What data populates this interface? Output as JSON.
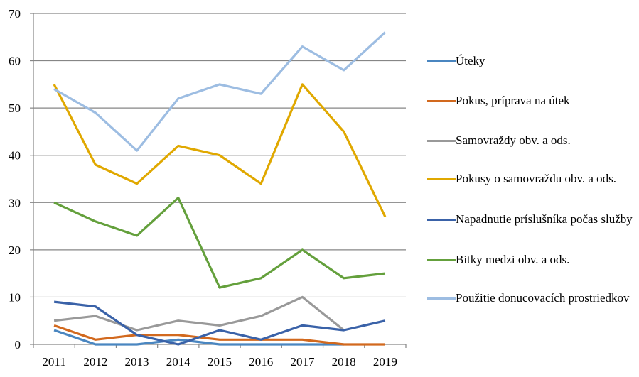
{
  "chart_data": {
    "type": "line",
    "title": "",
    "xlabel": "",
    "ylabel": "",
    "ylim": [
      0,
      70
    ],
    "yticks": [
      0,
      10,
      20,
      30,
      40,
      50,
      60,
      70
    ],
    "ytick_labels": [
      "0",
      "10",
      "20",
      "30",
      "40",
      "50",
      "60",
      "70"
    ],
    "grid": true,
    "legend_position": "right",
    "categories": [
      "2011",
      "2012",
      "2013",
      "2014",
      "2015",
      "2016",
      "2017",
      "2018",
      "2019"
    ],
    "series": [
      {
        "name": "Úteky",
        "color": "#4A86C0",
        "values": [
          3,
          0,
          0,
          1,
          0,
          0,
          0,
          0,
          null
        ]
      },
      {
        "name": "Pokus, príprava na útek",
        "color": "#D2691E",
        "values": [
          4,
          1,
          2,
          2,
          1,
          1,
          1,
          0,
          0
        ]
      },
      {
        "name": "Samovraždy obv. a ods.",
        "color": "#999999",
        "values": [
          5,
          6,
          3,
          5,
          4,
          6,
          10,
          3,
          null
        ]
      },
      {
        "name": "Pokusy o samovraždu obv. a ods.",
        "color": "#E0A800",
        "values": [
          55,
          38,
          34,
          42,
          40,
          34,
          55,
          45,
          27
        ]
      },
      {
        "name": "Napadnutie príslušníka počas služby",
        "color": "#3A62A8",
        "values": [
          9,
          8,
          2,
          0,
          3,
          1,
          4,
          3,
          5
        ]
      },
      {
        "name": "Bitky medzi obv. a ods.",
        "color": "#64A03C",
        "values": [
          30,
          26,
          23,
          31,
          12,
          14,
          20,
          14,
          15
        ]
      },
      {
        "name": "Použitie donucovacích prostriedkov",
        "color": "#9DBDE2",
        "values": [
          54,
          49,
          41,
          52,
          55,
          53,
          63,
          58,
          66
        ]
      }
    ]
  }
}
